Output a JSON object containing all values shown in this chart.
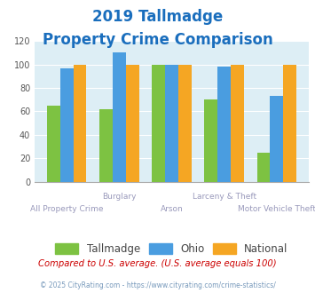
{
  "title_line1": "2019 Tallmadge",
  "title_line2": "Property Crime Comparison",
  "title_color": "#1a6ebd",
  "cat_labels_top": [
    "",
    "Burglary",
    "",
    "Larceny & Theft",
    ""
  ],
  "cat_labels_bot": [
    "All Property Crime",
    "",
    "Arson",
    "",
    "Motor Vehicle Theft"
  ],
  "tallmadge": [
    65,
    62,
    100,
    70,
    25
  ],
  "ohio": [
    97,
    110,
    100,
    98,
    73
  ],
  "national": [
    100,
    100,
    100,
    100,
    100
  ],
  "color_tallmadge": "#7dc242",
  "color_ohio": "#4a9de0",
  "color_national": "#f5a623",
  "ylim": [
    0,
    120
  ],
  "yticks": [
    0,
    20,
    40,
    60,
    80,
    100,
    120
  ],
  "legend_labels": [
    "Tallmadge",
    "Ohio",
    "National"
  ],
  "footnote1": "Compared to U.S. average. (U.S. average equals 100)",
  "footnote2": "© 2025 CityRating.com - https://www.cityrating.com/crime-statistics/",
  "footnote1_color": "#cc0000",
  "footnote2_color": "#7799bb",
  "bg_color": "#ddeef5",
  "label_color": "#9999bb"
}
